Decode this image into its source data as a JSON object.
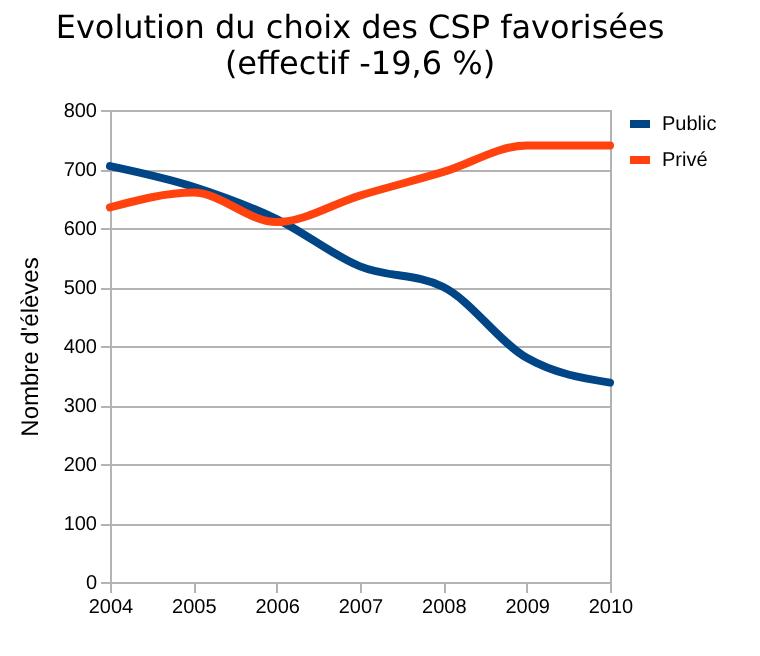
{
  "chart_data": {
    "type": "line",
    "title": [
      "Evolution du choix des CSP favorisées",
      "(effectif -19,6 %)"
    ],
    "ylabel": "Nombre d'élèves",
    "x": [
      2004,
      2005,
      2006,
      2007,
      2008,
      2009,
      2010
    ],
    "series": [
      {
        "name": "Public",
        "color": "#004586",
        "values": [
          705,
          670,
          615,
          535,
          500,
          380,
          338
        ]
      },
      {
        "name": "Privé",
        "color": "#ff420e",
        "values": [
          635,
          660,
          610,
          655,
          695,
          740,
          740
        ]
      }
    ],
    "xlim": [
      2004,
      2010
    ],
    "xticks": [
      2004,
      2005,
      2006,
      2007,
      2008,
      2009,
      2010
    ],
    "ylim": [
      0,
      800
    ],
    "yticks": [
      0,
      100,
      200,
      300,
      400,
      500,
      600,
      700,
      800
    ],
    "grid": "y",
    "legend": "right",
    "marker": "none",
    "line_style": "solid"
  }
}
